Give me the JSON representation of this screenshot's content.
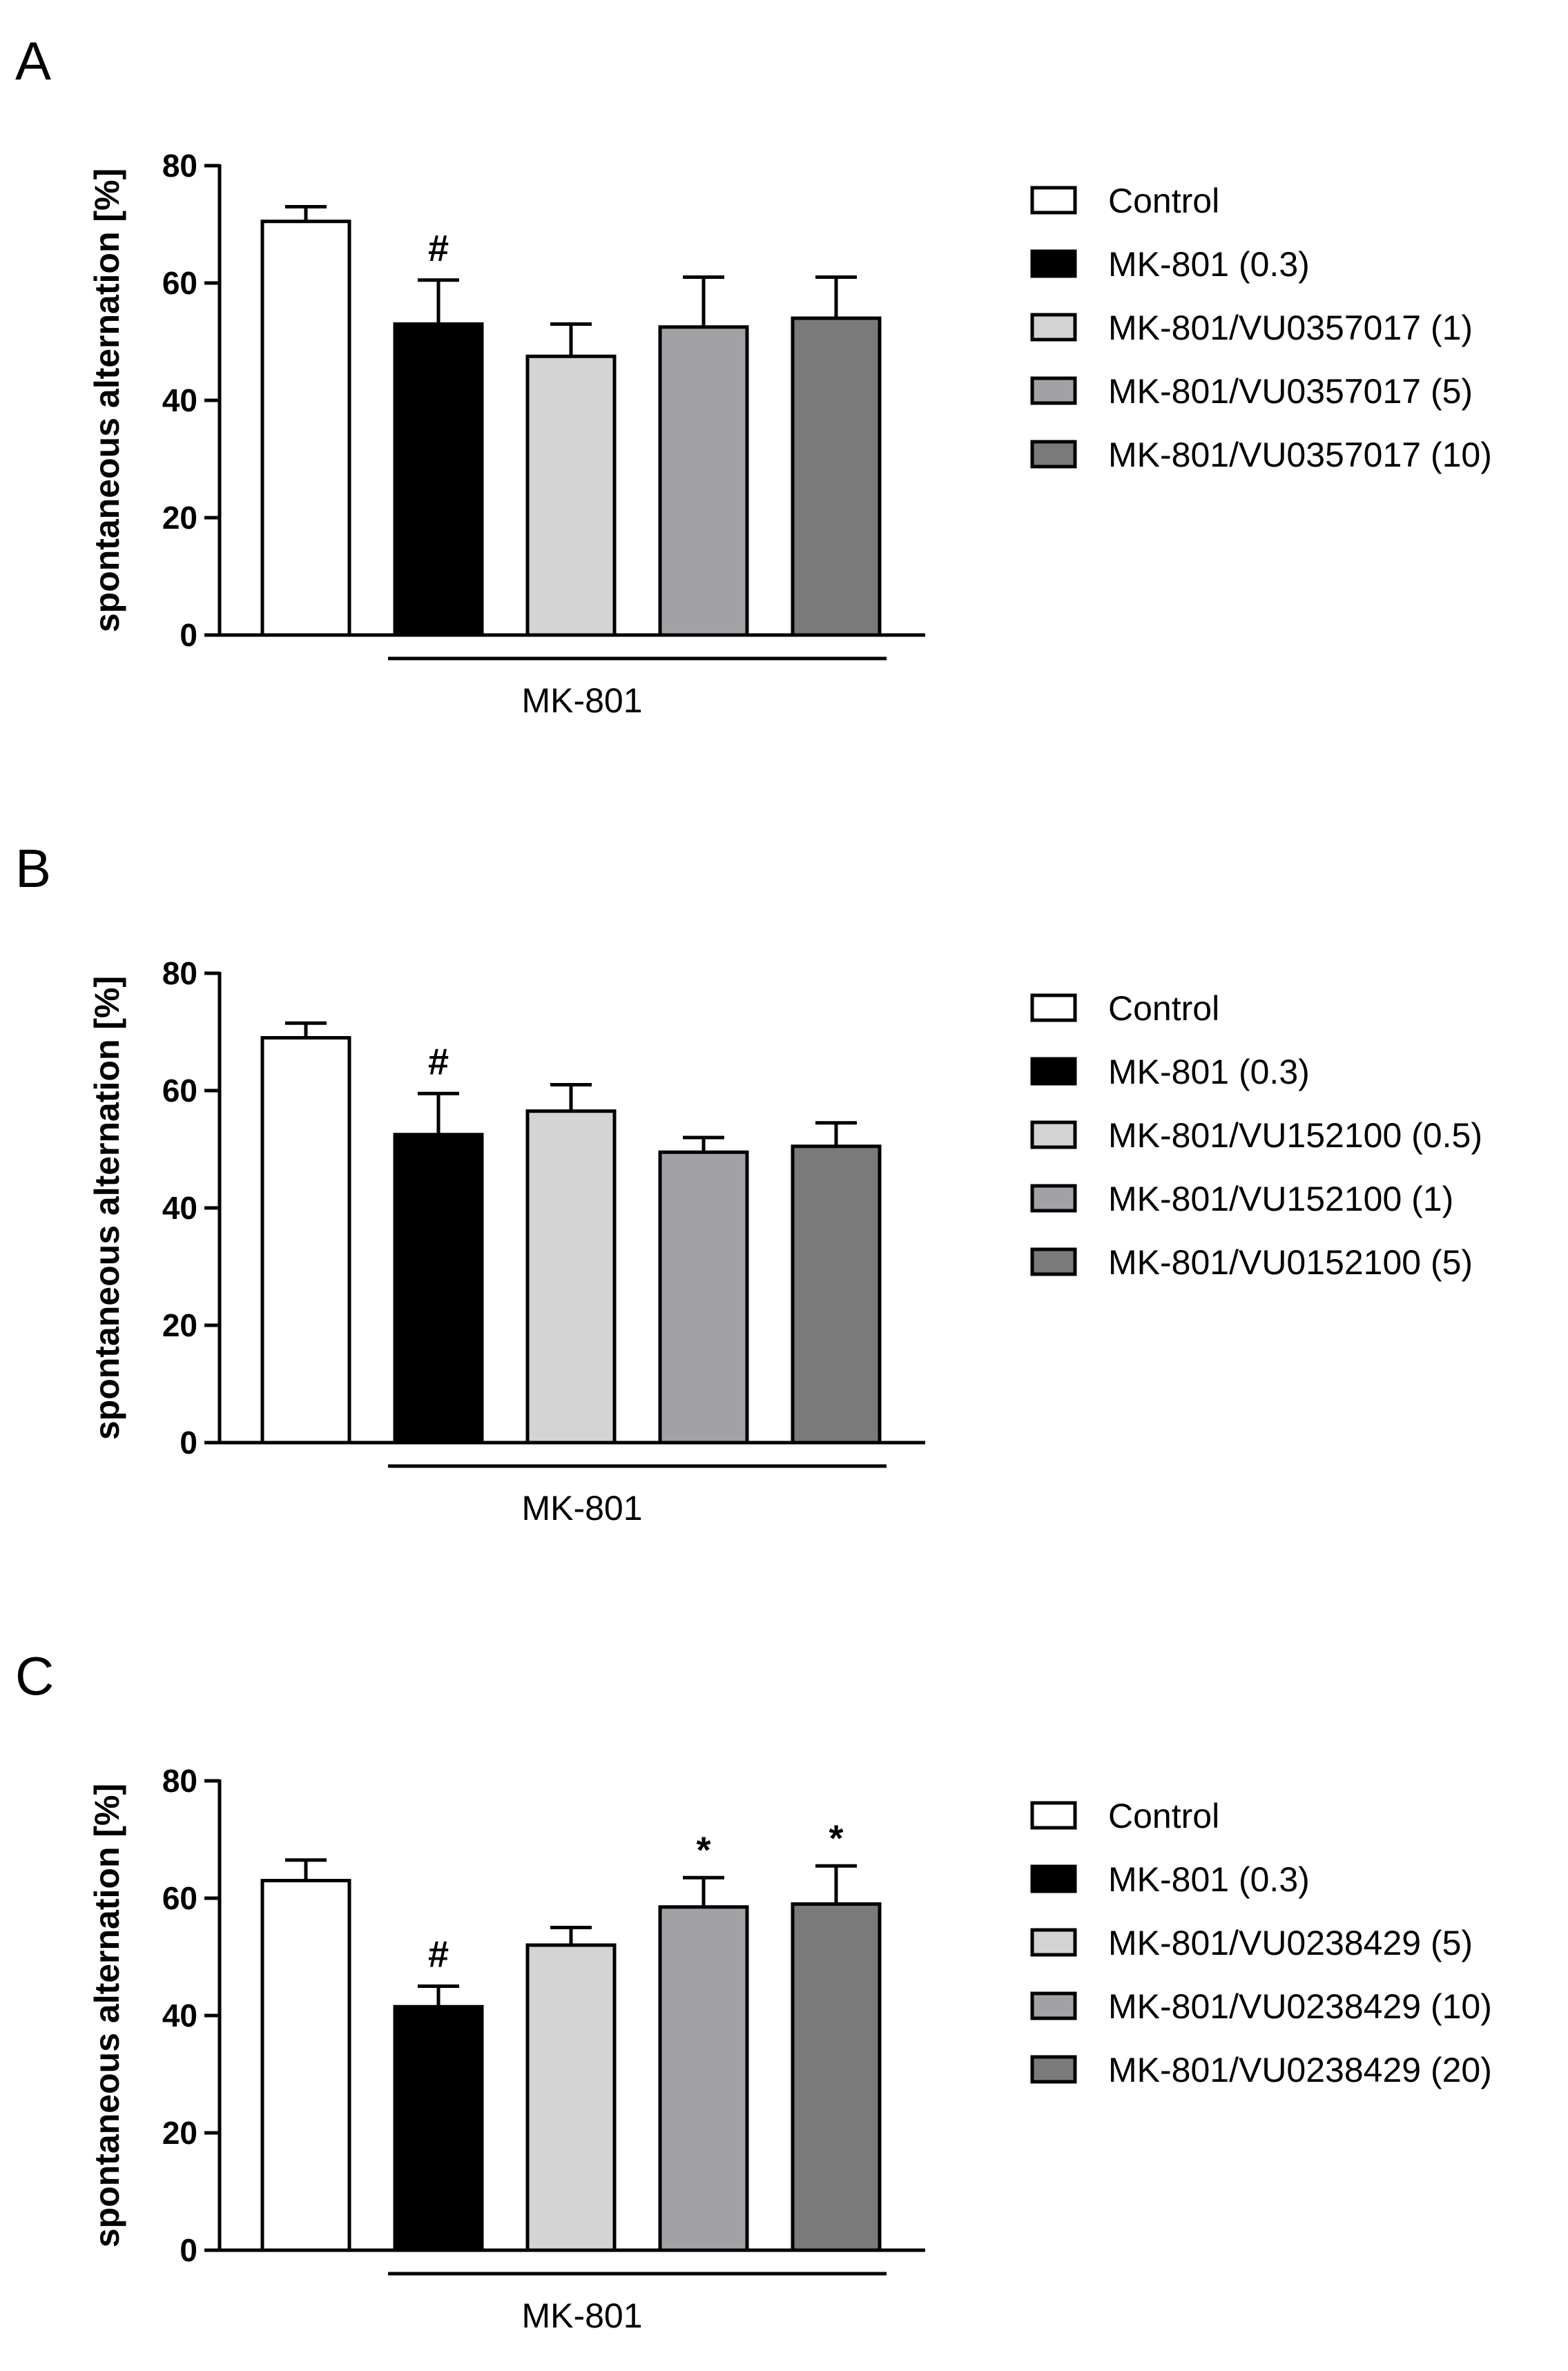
{
  "chart_data": [
    {
      "panel": "A",
      "type": "bar",
      "title": "",
      "xlabel": "",
      "ylabel": "spontaneous alternation [%]",
      "ylim": [
        0,
        80
      ],
      "yticks": [
        0,
        20,
        40,
        60,
        80
      ],
      "grid": false,
      "legend_position": "right",
      "group_label": "MK-801",
      "categories": [
        "Control",
        "MK-801 (0.3)",
        "MK-801/VU0357017 (1)",
        "MK-801/VU0357017 (5)",
        "MK-801/VU0357017 (10)"
      ],
      "values": [
        70.5,
        53,
        47.5,
        52.5,
        54
      ],
      "errors": [
        2.5,
        7.5,
        5.5,
        8.5,
        7
      ],
      "annotations": [
        "",
        "#",
        "",
        "",
        ""
      ]
    },
    {
      "panel": "B",
      "type": "bar",
      "title": "",
      "xlabel": "",
      "ylabel": "spontaneous alternation [%]",
      "ylim": [
        0,
        80
      ],
      "yticks": [
        0,
        20,
        40,
        60,
        80
      ],
      "grid": false,
      "legend_position": "right",
      "group_label": "MK-801",
      "categories": [
        "Control",
        "MK-801 (0.3)",
        "MK-801/VU152100 (0.5)",
        "MK-801/VU152100 (1)",
        "MK-801/VU0152100 (5)"
      ],
      "values": [
        69,
        52.5,
        56.5,
        49.5,
        50.5
      ],
      "errors": [
        2.5,
        7,
        4.5,
        2.5,
        4
      ],
      "annotations": [
        "",
        "#",
        "",
        "",
        ""
      ]
    },
    {
      "panel": "C",
      "type": "bar",
      "title": "",
      "xlabel": "",
      "ylabel": "spontaneous alternation [%]",
      "ylim": [
        0,
        80
      ],
      "yticks": [
        0,
        20,
        40,
        60,
        80
      ],
      "grid": false,
      "legend_position": "right",
      "group_label": "MK-801",
      "categories": [
        "Control",
        "MK-801 (0.3)",
        "MK-801/VU0238429 (5)",
        "MK-801/VU0238429 (10)",
        "MK-801/VU0238429 (20)"
      ],
      "values": [
        63,
        41.5,
        52,
        58.5,
        59
      ],
      "errors": [
        3.5,
        3.5,
        3,
        5,
        6.5
      ],
      "annotations": [
        "",
        "#",
        "",
        "*",
        "*"
      ]
    }
  ],
  "colors": {
    "series_fills": [
      "#ffffff",
      "#000000",
      "#d4d4d4",
      "#a2a2a6",
      "#7a7a7a"
    ],
    "stroke": "#000000"
  }
}
